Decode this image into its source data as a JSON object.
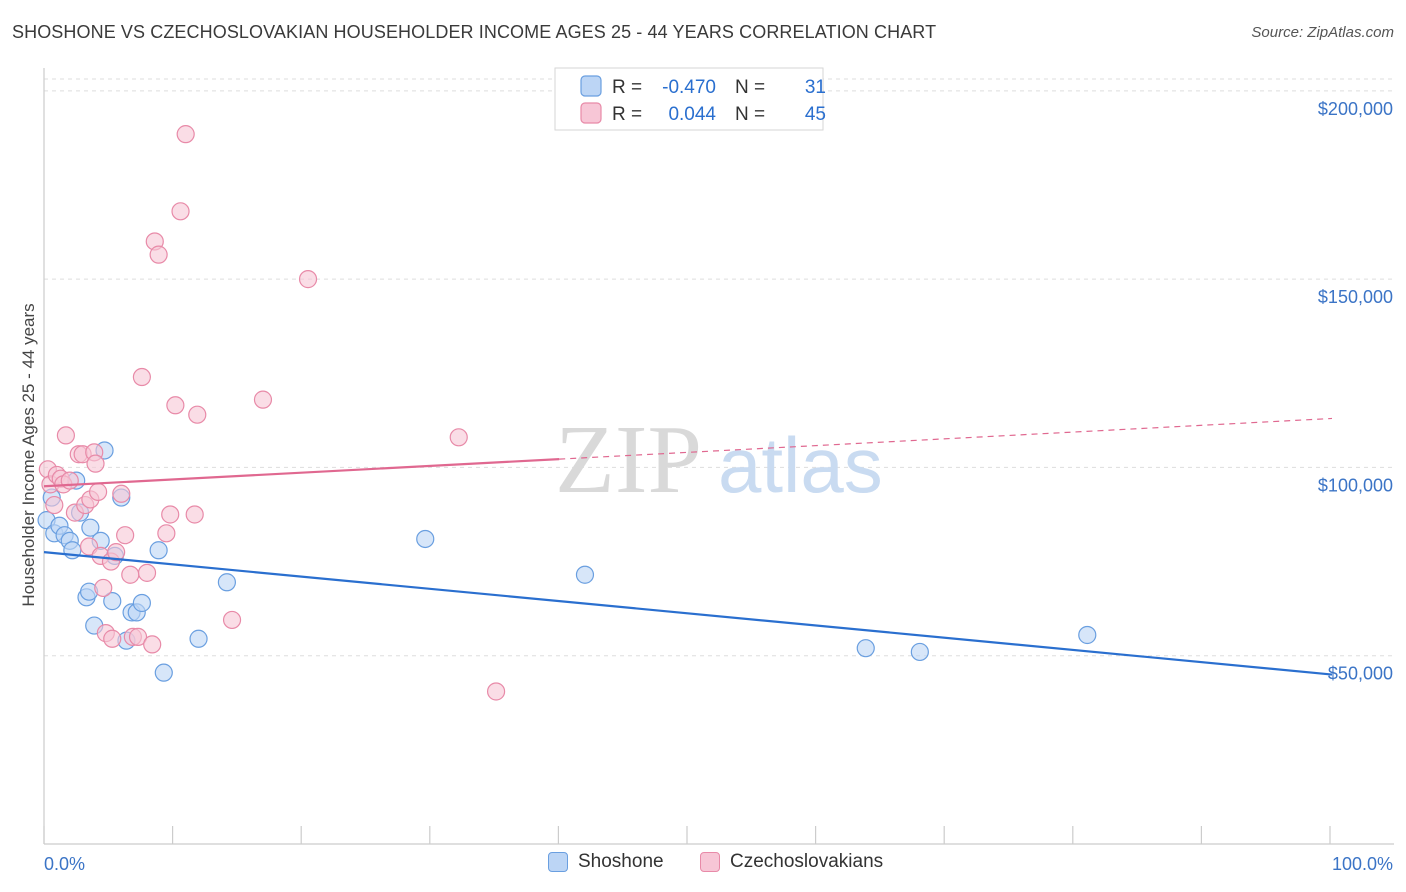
{
  "header": {
    "title": "SHOSHONE VS CZECHOSLOVAKIAN HOUSEHOLDER INCOME AGES 25 - 44 YEARS CORRELATION CHART",
    "source_prefix": "Source: ",
    "source_name": "ZipAtlas.com"
  },
  "watermark": {
    "zip": "ZIP",
    "atlas": "atlas"
  },
  "colors": {
    "blue": "#6a9fe0",
    "blue_fill": "#bcd5f5",
    "blue_line": "#2a6fcf",
    "pink": "#e88aa8",
    "pink_fill": "#f7c6d6",
    "pink_line": "#e06890",
    "axis_text": "#3b74c6",
    "grid": "#dddddd"
  },
  "legend_top": {
    "rows": [
      {
        "r_label": "R =",
        "r_value": "-0.470",
        "n_label": "N =",
        "n_value": "31"
      },
      {
        "r_label": "R =",
        "r_value": "0.044",
        "n_label": "N =",
        "n_value": "45"
      }
    ]
  },
  "legend_bottom": {
    "items": [
      "Shoshone",
      "Czechoslovakians"
    ]
  },
  "chart_data": {
    "type": "scatter",
    "title": "SHOSHONE VS CZECHOSLOVAKIAN HOUSEHOLDER INCOME AGES 25 - 44 YEARS CORRELATION CHART",
    "xlabel": "",
    "ylabel": "Householder Income Ages 25 - 44 years",
    "x_tick_labels": [
      "0.0%",
      "100.0%"
    ],
    "y_tick_labels": [
      "$50,000",
      "$100,000",
      "$150,000",
      "$200,000"
    ],
    "y_ticks": [
      50000,
      100000,
      150000,
      200000
    ],
    "xlim": [
      0,
      100
    ],
    "ylim": [
      0,
      205000
    ],
    "grid": true,
    "series": [
      {
        "name": "Shoshone",
        "r": -0.47,
        "n": 31,
        "trend": {
          "x": [
            0,
            100
          ],
          "y": [
            77500,
            45000
          ],
          "dashed_from": null
        },
        "points": [
          [
            0.2,
            86000
          ],
          [
            0.6,
            92000
          ],
          [
            0.8,
            82500
          ],
          [
            1.2,
            84500
          ],
          [
            1.6,
            82000
          ],
          [
            2.0,
            80500
          ],
          [
            2.2,
            78000
          ],
          [
            2.5,
            96500
          ],
          [
            2.8,
            88000
          ],
          [
            3.3,
            65500
          ],
          [
            3.5,
            67000
          ],
          [
            3.6,
            84000
          ],
          [
            3.9,
            58000
          ],
          [
            4.4,
            80500
          ],
          [
            4.7,
            104500
          ],
          [
            5.3,
            64500
          ],
          [
            5.5,
            76500
          ],
          [
            6.0,
            92000
          ],
          [
            6.4,
            54000
          ],
          [
            6.8,
            61500
          ],
          [
            7.2,
            61500
          ],
          [
            7.6,
            64000
          ],
          [
            8.9,
            78000
          ],
          [
            9.3,
            45500
          ],
          [
            12.0,
            54500
          ],
          [
            14.2,
            69500
          ],
          [
            29.6,
            81000
          ],
          [
            42.0,
            71500
          ],
          [
            63.8,
            52000
          ],
          [
            68.0,
            51000
          ],
          [
            81.0,
            55500
          ]
        ]
      },
      {
        "name": "Czechoslovakians",
        "r": 0.044,
        "n": 45,
        "trend": {
          "x": [
            0,
            100
          ],
          "y": [
            95000,
            113000
          ],
          "dashed_from": 40
        },
        "points": [
          [
            0.3,
            99500
          ],
          [
            0.5,
            95500
          ],
          [
            0.8,
            90000
          ],
          [
            1.0,
            98000
          ],
          [
            1.3,
            97000
          ],
          [
            1.5,
            95500
          ],
          [
            1.7,
            108500
          ],
          [
            2.0,
            96500
          ],
          [
            2.4,
            88000
          ],
          [
            2.7,
            103500
          ],
          [
            3.0,
            103500
          ],
          [
            3.2,
            90000
          ],
          [
            3.5,
            79000
          ],
          [
            3.6,
            91500
          ],
          [
            3.9,
            104000
          ],
          [
            4.0,
            101000
          ],
          [
            4.2,
            93500
          ],
          [
            4.4,
            76500
          ],
          [
            4.6,
            68000
          ],
          [
            4.8,
            56000
          ],
          [
            5.2,
            75000
          ],
          [
            5.6,
            77500
          ],
          [
            6.0,
            93000
          ],
          [
            6.3,
            82000
          ],
          [
            6.7,
            71500
          ],
          [
            6.9,
            55000
          ],
          [
            7.3,
            55000
          ],
          [
            8.0,
            72000
          ],
          [
            8.4,
            53000
          ],
          [
            8.6,
            160000
          ],
          [
            8.9,
            156500
          ],
          [
            9.5,
            82500
          ],
          [
            9.8,
            87500
          ],
          [
            10.2,
            116500
          ],
          [
            10.6,
            168000
          ],
          [
            11.0,
            188500
          ],
          [
            11.7,
            87500
          ],
          [
            11.9,
            114000
          ],
          [
            14.6,
            59500
          ],
          [
            17.0,
            118000
          ],
          [
            20.5,
            150000
          ],
          [
            32.2,
            108000
          ],
          [
            35.1,
            40500
          ],
          [
            7.6,
            124000
          ],
          [
            5.3,
            54500
          ]
        ]
      }
    ]
  }
}
